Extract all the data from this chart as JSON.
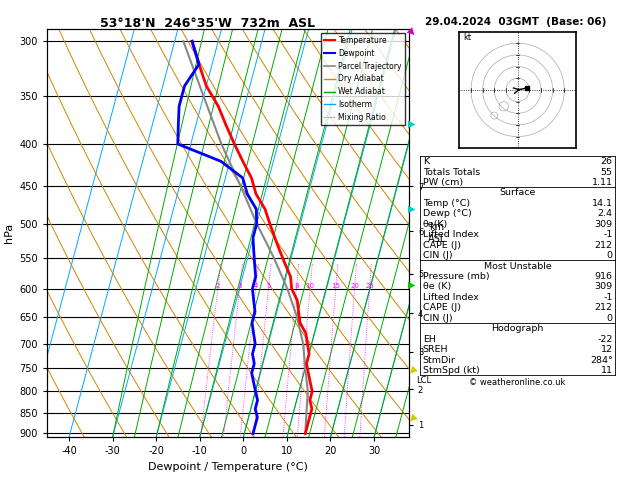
{
  "title_left": "53°18'N  246°35'W  732m  ASL",
  "title_right": "29.04.2024  03GMT  (Base: 06)",
  "xlabel": "Dewpoint / Temperature (°C)",
  "ylabel_left": "hPa",
  "pressure_ticks": [
    300,
    350,
    400,
    450,
    500,
    550,
    600,
    650,
    700,
    750,
    800,
    850,
    900
  ],
  "xlim": [
    -45,
    38
  ],
  "xticks": [
    -40,
    -30,
    -20,
    -10,
    0,
    10,
    20,
    30
  ],
  "temp_color": "#ff0000",
  "dewp_color": "#0000ff",
  "parcel_color": "#888888",
  "dry_adiabat_color": "#cc8800",
  "wet_adiabat_color": "#00aa00",
  "isotherm_color": "#00aaff",
  "mixing_ratio_color": "#ff00ff",
  "mixing_ratio_values": [
    2,
    3,
    4,
    5,
    8,
    10,
    15,
    20,
    25
  ],
  "lcl_label": "LCL",
  "lcl_pressure": 775,
  "temp_profile": {
    "pressure": [
      300,
      320,
      340,
      360,
      380,
      400,
      420,
      440,
      460,
      480,
      500,
      520,
      540,
      560,
      580,
      600,
      620,
      640,
      660,
      680,
      700,
      720,
      740,
      760,
      780,
      800,
      820,
      840,
      860,
      880,
      900
    ],
    "temp": [
      -36,
      -33,
      -30,
      -26,
      -23,
      -20,
      -17,
      -14,
      -12,
      -9,
      -7,
      -5,
      -3,
      -1,
      1,
      2,
      4,
      5,
      6,
      8,
      9,
      10,
      10,
      11,
      12,
      13,
      13,
      14,
      14,
      14,
      14
    ]
  },
  "dewp_profile": {
    "pressure": [
      300,
      320,
      340,
      360,
      380,
      400,
      420,
      440,
      460,
      480,
      500,
      520,
      540,
      560,
      580,
      600,
      620,
      640,
      660,
      680,
      700,
      720,
      740,
      760,
      780,
      800,
      820,
      840,
      860,
      880,
      900
    ],
    "dewp": [
      -36,
      -33,
      -35,
      -35,
      -34,
      -33,
      -22,
      -16,
      -14,
      -11,
      -10,
      -10,
      -9,
      -8,
      -7,
      -7,
      -6,
      -5,
      -5,
      -4,
      -3,
      -3,
      -2,
      -2,
      -1,
      0,
      1,
      1,
      2,
      2,
      2
    ]
  },
  "parcel_profile": {
    "pressure": [
      300,
      350,
      400,
      450,
      500,
      550,
      600,
      650,
      700,
      750,
      800,
      850,
      900
    ],
    "temp": [
      -38,
      -30,
      -23,
      -16,
      -10,
      -4,
      1,
      5,
      8,
      10,
      12,
      13,
      14
    ]
  }
}
